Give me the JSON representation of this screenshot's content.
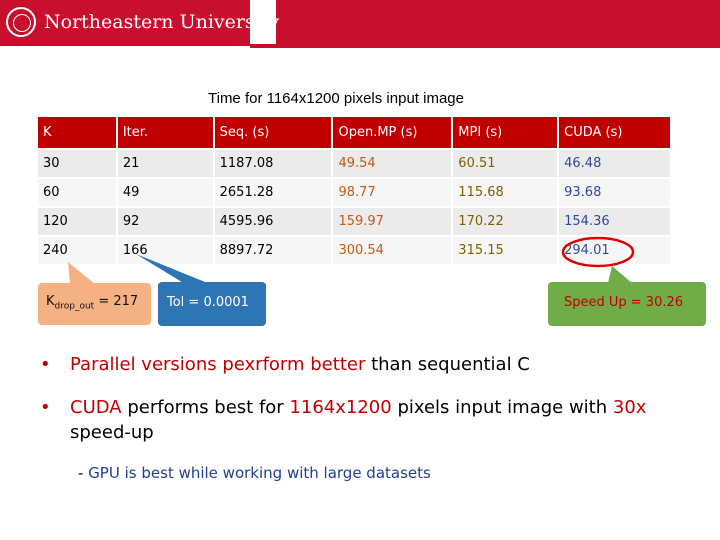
{
  "header": {
    "university_name": "Northeastern University"
  },
  "title": "Time for 1164x1200 pixels input image",
  "table": {
    "columns": [
      "K",
      "Iter.",
      "Seq. (s)",
      "Open.MP (s)",
      "MPI (s)",
      "CUDA (s)"
    ],
    "rows": [
      [
        "30",
        "21",
        "1187.08",
        "49.54",
        "60.51",
        "46.48"
      ],
      [
        "60",
        "49",
        "2651.28",
        "98.77",
        "115.68",
        "93.68"
      ],
      [
        "120",
        "92",
        "4595.96",
        "159.97",
        "170.22",
        "154.36"
      ],
      [
        "240",
        "166",
        "8897.72",
        "300.54",
        "315.15",
        "294.01"
      ]
    ]
  },
  "callouts": {
    "k_prefix": "K",
    "k_subscript": "drop_out",
    "k_suffix": " = 217",
    "tol": "Tol = 0.0001",
    "speedup": "Speed Up = 30.26"
  },
  "bullets": {
    "b1_highlight": "Parallel versions pexrform better",
    "b1_rest": " than sequential C",
    "b2_part1": "CUDA",
    "b2_part2": " performs best for ",
    "b2_part3": "1164x1200",
    "b2_part4": " pixels input image with ",
    "b2_part5": "30x",
    "b2_part6": " speed-up",
    "sub_dash": "- ",
    "sub_text": "GPU is best while working with large datasets"
  },
  "colors": {
    "brand_red": "#c8102e",
    "table_header": "#c00000",
    "callout_k": "#f4b183",
    "callout_tol": "#2e75b6",
    "callout_speedup": "#70ad47"
  }
}
